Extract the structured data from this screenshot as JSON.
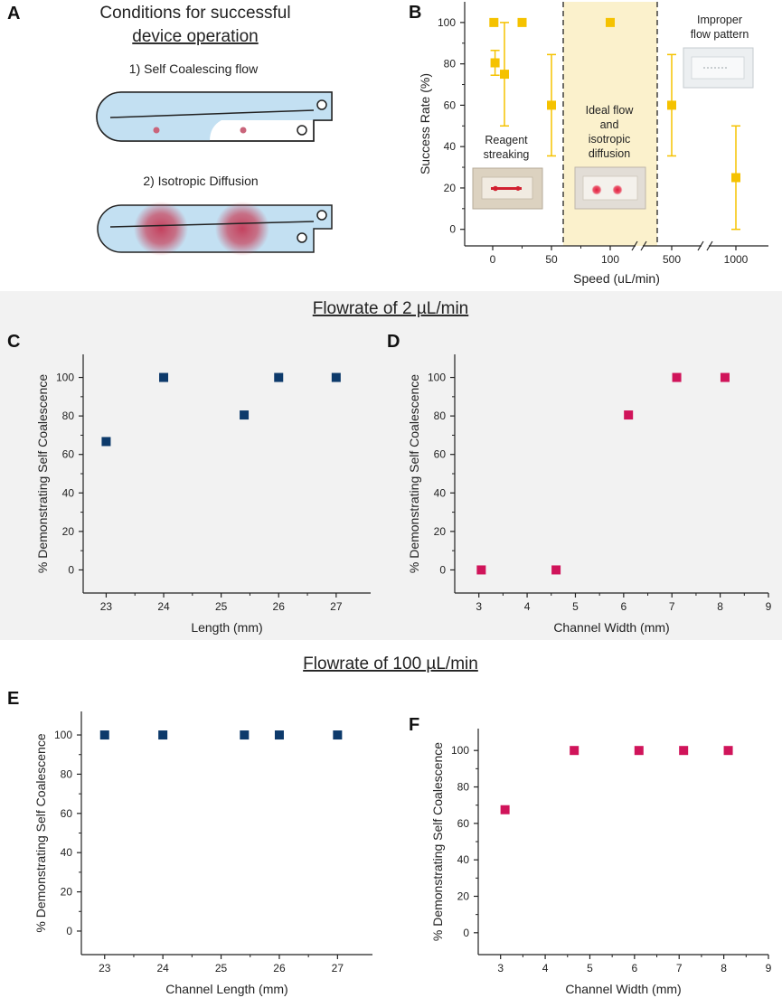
{
  "panel_a": {
    "letter": "A",
    "title_line1": "Conditions for successful",
    "title_line2": "device operation",
    "step1": "1) Self Coalescing flow",
    "step2": "2)  Isotropic Diffusion"
  },
  "section_titles": {
    "low_flow": "Flowrate of 2 µL/min",
    "high_flow": "Flowrate of 100 µL/min"
  },
  "colors": {
    "yellow": "#f5c200",
    "navy": "#0d3a6b",
    "magenta": "#d0145a",
    "band": "#fbf1cc",
    "gray_bg": "#f2f2f2"
  },
  "chart_data": [
    {
      "id": "B",
      "letter": "B",
      "type": "scatter",
      "xlabel": "Speed (uL/min)",
      "ylabel": "Success Rate (%)",
      "ylim": [
        -8,
        110
      ],
      "yticks": [
        0,
        20,
        40,
        60,
        80,
        100
      ],
      "xtick_labels": [
        "0",
        "50",
        "100",
        "500",
        "1000"
      ],
      "points": [
        {
          "speed": 1,
          "value": 100,
          "err": null
        },
        {
          "speed": 2,
          "value": 80.5,
          "err": [
            74.5,
            86.5
          ]
        },
        {
          "speed": 10,
          "value": 75,
          "err": [
            50,
            100
          ]
        },
        {
          "speed": 25,
          "value": 100,
          "err": null
        },
        {
          "speed": 50,
          "value": 60,
          "err": [
            35.5,
            84.5
          ]
        },
        {
          "speed": 100,
          "value": 100,
          "err": null
        },
        {
          "speed": 500,
          "value": 60,
          "err": [
            35.5,
            84.5
          ]
        },
        {
          "speed": 1000,
          "value": 25,
          "err": [
            0,
            50
          ]
        }
      ],
      "annotations": {
        "reagent": [
          "Reagent",
          "streaking"
        ],
        "ideal": [
          "Ideal flow",
          "and",
          "isotropic",
          "diffusion"
        ],
        "improper": [
          "Improper",
          "flow pattern"
        ]
      }
    },
    {
      "id": "C",
      "letter": "C",
      "type": "scatter",
      "xlabel": "Length (mm)",
      "ylabel": "% Demonstrating Self Coalescence",
      "xlim": [
        22.6,
        27.6
      ],
      "ylim": [
        -12,
        112
      ],
      "xticks": [
        23,
        24,
        25,
        26,
        27
      ],
      "yticks": [
        0,
        20,
        40,
        60,
        80,
        100
      ],
      "x": [
        23,
        24,
        25.4,
        26,
        27
      ],
      "y": [
        66.7,
        100,
        80.5,
        100,
        100
      ],
      "color": "#0d3a6b"
    },
    {
      "id": "D",
      "letter": "D",
      "type": "scatter",
      "xlabel": "Channel Width (mm)",
      "ylabel": "% Demonstrating Self Coalescence",
      "xlim": [
        2.5,
        9
      ],
      "ylim": [
        -12,
        112
      ],
      "xticks": [
        3,
        4,
        5,
        6,
        7,
        8,
        9
      ],
      "yticks": [
        0,
        20,
        40,
        60,
        80,
        100
      ],
      "x": [
        3.05,
        4.6,
        6.1,
        7.1,
        8.1
      ],
      "y": [
        0,
        0,
        80.5,
        100,
        100
      ],
      "color": "#d0145a"
    },
    {
      "id": "E",
      "letter": "E",
      "type": "scatter",
      "xlabel": "Channel Length (mm)",
      "ylabel": "% Demonstrating Self Coalescence",
      "xlim": [
        22.6,
        27.6
      ],
      "ylim": [
        -12,
        112
      ],
      "xticks": [
        23,
        24,
        25,
        26,
        27
      ],
      "yticks": [
        0,
        20,
        40,
        60,
        80,
        100
      ],
      "x": [
        23,
        24,
        25.4,
        26,
        27
      ],
      "y": [
        100,
        100,
        100,
        100,
        100
      ],
      "color": "#0d3a6b"
    },
    {
      "id": "F",
      "letter": "F",
      "type": "scatter",
      "xlabel": "Channel Width (mm)",
      "ylabel": "% Demonstrating Self Coalescence",
      "xlim": [
        2.5,
        9
      ],
      "ylim": [
        -12,
        112
      ],
      "xticks": [
        3,
        4,
        5,
        6,
        7,
        8,
        9
      ],
      "yticks": [
        0,
        20,
        40,
        60,
        80,
        100
      ],
      "x": [
        3.1,
        4.65,
        6.1,
        7.1,
        8.1
      ],
      "y": [
        67.5,
        100,
        100,
        100,
        100
      ],
      "color": "#d0145a"
    }
  ]
}
